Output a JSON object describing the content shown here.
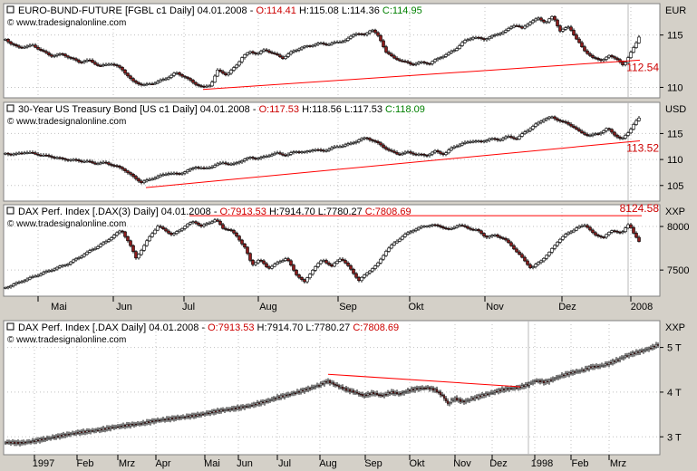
{
  "chart_data": [
    {
      "type": "candlestick",
      "name": "EURO-BUND-FUTURE [FGBL c1",
      "interval": "Daily]",
      "date": "04.01.2008",
      "open_label": "O:",
      "open": "114.41",
      "high_label": "H:",
      "high": "115.08",
      "low_label": "L:",
      "low": "114.36",
      "close_label": "C:",
      "close": "114.95",
      "source": "www.tradesignalonline.com",
      "unit": "EUR",
      "yticks": [
        115,
        110
      ],
      "ylim": [
        109,
        118
      ],
      "series": [
        [
          0,
          114.6
        ],
        [
          6,
          114.2
        ],
        [
          14,
          113.8
        ],
        [
          22,
          113.9
        ],
        [
          30,
          114.0
        ],
        [
          40,
          113.5
        ],
        [
          50,
          113.0
        ],
        [
          62,
          113.2
        ],
        [
          72,
          112.8
        ],
        [
          82,
          112.4
        ],
        [
          92,
          112.6
        ],
        [
          104,
          112.0
        ],
        [
          116,
          112.3
        ],
        [
          128,
          111.8
        ],
        [
          140,
          110.6
        ],
        [
          152,
          110.2
        ],
        [
          164,
          110.4
        ],
        [
          176,
          110.8
        ],
        [
          188,
          111.4
        ],
        [
          198,
          111.0
        ],
        [
          208,
          110.4
        ],
        [
          218,
          110.0
        ],
        [
          226,
          110.2
        ],
        [
          234,
          111.6
        ],
        [
          244,
          111.2
        ],
        [
          254,
          112.0
        ],
        [
          262,
          113.0
        ],
        [
          270,
          113.4
        ],
        [
          278,
          113.2
        ],
        [
          286,
          113.6
        ],
        [
          296,
          113.2
        ],
        [
          306,
          112.8
        ],
        [
          316,
          113.4
        ],
        [
          326,
          113.8
        ],
        [
          336,
          114.0
        ],
        [
          346,
          114.2
        ],
        [
          356,
          114.1
        ],
        [
          366,
          114.3
        ],
        [
          376,
          114.5
        ],
        [
          386,
          115.2
        ],
        [
          396,
          115.0
        ],
        [
          404,
          115.6
        ],
        [
          412,
          114.8
        ],
        [
          420,
          113.4
        ],
        [
          428,
          112.8
        ],
        [
          438,
          112.5
        ],
        [
          448,
          112.2
        ],
        [
          458,
          112.4
        ],
        [
          468,
          112.3
        ],
        [
          478,
          112.8
        ],
        [
          488,
          113.2
        ],
        [
          496,
          113.6
        ],
        [
          506,
          114.4
        ],
        [
          516,
          114.8
        ],
        [
          528,
          114.6
        ],
        [
          540,
          115.0
        ],
        [
          552,
          115.4
        ],
        [
          562,
          116.0
        ],
        [
          570,
          115.6
        ],
        [
          578,
          116.2
        ],
        [
          588,
          116.6
        ],
        [
          596,
          116.2
        ],
        [
          604,
          116.8
        ],
        [
          612,
          115.4
        ],
        [
          622,
          115.8
        ],
        [
          630,
          114.6
        ],
        [
          638,
          113.6
        ],
        [
          648,
          112.8
        ],
        [
          658,
          112.6
        ],
        [
          666,
          113.0
        ],
        [
          674,
          112.8
        ],
        [
          682,
          112.0
        ],
        [
          690,
          113.4
        ],
        [
          696,
          114.2
        ],
        [
          700,
          114.95
        ]
      ],
      "trendline": {
        "from": [
          218,
          109.8
        ],
        "to": [
          700,
          112.6
        ]
      },
      "trendline_label": "112.54"
    },
    {
      "type": "candlestick",
      "name": "30-Year US Treasury Bond [US c1",
      "interval": "Daily]",
      "date": "04.01.2008",
      "open_label": "O:",
      "open": "117.53",
      "high_label": "H:",
      "high": "118.56",
      "low_label": "L:",
      "low": "117.53",
      "close_label": "C:",
      "close": "118.09",
      "source": "www.tradesignalonline.com",
      "unit": "USD",
      "yticks": [
        115,
        110,
        105
      ],
      "ylim": [
        102,
        121
      ],
      "series": [
        [
          0,
          111.2
        ],
        [
          10,
          111.0
        ],
        [
          20,
          111.4
        ],
        [
          30,
          111.2
        ],
        [
          40,
          110.8
        ],
        [
          50,
          110.6
        ],
        [
          60,
          110.2
        ],
        [
          70,
          110.0
        ],
        [
          80,
          109.8
        ],
        [
          90,
          109.6
        ],
        [
          100,
          109.2
        ],
        [
          110,
          109.4
        ],
        [
          120,
          108.8
        ],
        [
          130,
          108.2
        ],
        [
          140,
          106.8
        ],
        [
          150,
          105.6
        ],
        [
          160,
          106.2
        ],
        [
          170,
          106.8
        ],
        [
          180,
          107.4
        ],
        [
          190,
          107.2
        ],
        [
          200,
          107.8
        ],
        [
          210,
          108.6
        ],
        [
          220,
          108.2
        ],
        [
          230,
          108.8
        ],
        [
          240,
          109.4
        ],
        [
          250,
          109.0
        ],
        [
          260,
          109.8
        ],
        [
          270,
          110.4
        ],
        [
          280,
          110.2
        ],
        [
          290,
          110.8
        ],
        [
          300,
          111.2
        ],
        [
          310,
          110.8
        ],
        [
          320,
          111.6
        ],
        [
          330,
          111.4
        ],
        [
          340,
          112.0
        ],
        [
          350,
          111.6
        ],
        [
          360,
          112.2
        ],
        [
          370,
          112.6
        ],
        [
          380,
          113.0
        ],
        [
          390,
          113.8
        ],
        [
          398,
          114.2
        ],
        [
          406,
          113.6
        ],
        [
          414,
          112.8
        ],
        [
          424,
          111.6
        ],
        [
          434,
          111.0
        ],
        [
          444,
          111.4
        ],
        [
          454,
          111.0
        ],
        [
          464,
          110.8
        ],
        [
          474,
          111.6
        ],
        [
          484,
          111.0
        ],
        [
          494,
          112.4
        ],
        [
          504,
          113.0
        ],
        [
          514,
          113.6
        ],
        [
          524,
          113.4
        ],
        [
          534,
          114.0
        ],
        [
          544,
          113.8
        ],
        [
          554,
          114.4
        ],
        [
          564,
          114.0
        ],
        [
          574,
          115.4
        ],
        [
          584,
          116.6
        ],
        [
          594,
          117.8
        ],
        [
          602,
          118.2
        ],
        [
          610,
          117.6
        ],
        [
          618,
          117.0
        ],
        [
          626,
          116.4
        ],
        [
          634,
          115.2
        ],
        [
          644,
          114.6
        ],
        [
          654,
          115.0
        ],
        [
          664,
          116.0
        ],
        [
          672,
          114.8
        ],
        [
          680,
          113.8
        ],
        [
          688,
          115.4
        ],
        [
          694,
          117.0
        ],
        [
          700,
          118.09
        ]
      ],
      "trendline": {
        "from": [
          155,
          104.6
        ],
        "to": [
          700,
          113.6
        ]
      },
      "trendline_label": "113.52"
    },
    {
      "type": "candlestick",
      "name": "DAX Perf. Index [.DAX(3)",
      "interval": "Daily]",
      "date": "04.01.2008",
      "open_label": "O:",
      "open": "7913.53",
      "high_label": "H:",
      "high": "7914.70",
      "low_label": "L:",
      "low": "7780.27",
      "close_label": "C:",
      "close": "7808.69",
      "source": "www.tradesignalonline.com",
      "unit": "XXP",
      "yticks": [
        8000,
        7500
      ],
      "ylim": [
        7200,
        8250
      ],
      "series": [
        [
          0,
          7300
        ],
        [
          10,
          7340
        ],
        [
          20,
          7380
        ],
        [
          30,
          7420
        ],
        [
          40,
          7460
        ],
        [
          50,
          7500
        ],
        [
          60,
          7540
        ],
        [
          70,
          7580
        ],
        [
          80,
          7640
        ],
        [
          90,
          7700
        ],
        [
          100,
          7760
        ],
        [
          110,
          7820
        ],
        [
          120,
          7900
        ],
        [
          128,
          7960
        ],
        [
          136,
          7820
        ],
        [
          144,
          7640
        ],
        [
          152,
          7760
        ],
        [
          160,
          7900
        ],
        [
          168,
          8000
        ],
        [
          176,
          7960
        ],
        [
          184,
          7900
        ],
        [
          192,
          7960
        ],
        [
          200,
          8020
        ],
        [
          208,
          8060
        ],
        [
          216,
          8000
        ],
        [
          224,
          8040
        ],
        [
          232,
          8080
        ],
        [
          240,
          7980
        ],
        [
          248,
          7960
        ],
        [
          256,
          7880
        ],
        [
          264,
          7760
        ],
        [
          272,
          7560
        ],
        [
          280,
          7620
        ],
        [
          290,
          7520
        ],
        [
          300,
          7580
        ],
        [
          310,
          7640
        ],
        [
          320,
          7460
        ],
        [
          330,
          7360
        ],
        [
          340,
          7520
        ],
        [
          350,
          7620
        ],
        [
          360,
          7540
        ],
        [
          370,
          7640
        ],
        [
          380,
          7520
        ],
        [
          390,
          7380
        ],
        [
          400,
          7480
        ],
        [
          410,
          7560
        ],
        [
          420,
          7720
        ],
        [
          430,
          7820
        ],
        [
          440,
          7900
        ],
        [
          450,
          7960
        ],
        [
          460,
          8000
        ],
        [
          470,
          8020
        ],
        [
          480,
          8000
        ],
        [
          490,
          7960
        ],
        [
          500,
          8020
        ],
        [
          510,
          7980
        ],
        [
          520,
          7960
        ],
        [
          530,
          7880
        ],
        [
          540,
          7900
        ],
        [
          550,
          7860
        ],
        [
          560,
          7760
        ],
        [
          570,
          7640
        ],
        [
          580,
          7520
        ],
        [
          590,
          7600
        ],
        [
          600,
          7700
        ],
        [
          610,
          7840
        ],
        [
          620,
          7920
        ],
        [
          630,
          7980
        ],
        [
          640,
          8020
        ],
        [
          650,
          7900
        ],
        [
          660,
          7880
        ],
        [
          670,
          7960
        ],
        [
          680,
          7920
        ],
        [
          688,
          8040
        ],
        [
          694,
          7900
        ],
        [
          700,
          7808
        ]
      ],
      "trendline": {
        "from": [
          203,
          8124
        ],
        "to": [
          702,
          8124
        ]
      },
      "trendline_label": "8124.58",
      "xticks": [
        "Mai",
        "Jun",
        "Jul",
        "Aug",
        "Sep",
        "Okt",
        "Nov",
        "Dez",
        "2008"
      ]
    },
    {
      "type": "candlestick",
      "name": "DAX Perf. Index [.DAX",
      "interval": "Daily]",
      "date": "04.01.2008",
      "open_label": "O:",
      "open": "7913.53",
      "high_label": "H:",
      "high": "7914.70",
      "low_label": "L:",
      "low": "7780.27",
      "close_label": "C:",
      "close": "7808.69",
      "source": "www.tradesignalonline.com",
      "unit": "XXP",
      "yticks": [
        "5 T",
        "4 T",
        "3 T"
      ],
      "ylim": [
        2600,
        5600
      ],
      "series": [
        [
          0,
          2880
        ],
        [
          15,
          2860
        ],
        [
          30,
          2900
        ],
        [
          45,
          2960
        ],
        [
          60,
          3020
        ],
        [
          75,
          3080
        ],
        [
          90,
          3120
        ],
        [
          105,
          3160
        ],
        [
          120,
          3220
        ],
        [
          135,
          3260
        ],
        [
          150,
          3300
        ],
        [
          165,
          3360
        ],
        [
          180,
          3400
        ],
        [
          195,
          3440
        ],
        [
          210,
          3480
        ],
        [
          225,
          3540
        ],
        [
          240,
          3600
        ],
        [
          255,
          3640
        ],
        [
          270,
          3700
        ],
        [
          285,
          3780
        ],
        [
          300,
          3880
        ],
        [
          315,
          3960
        ],
        [
          330,
          4050
        ],
        [
          345,
          4150
        ],
        [
          355,
          4250
        ],
        [
          365,
          4150
        ],
        [
          375,
          4060
        ],
        [
          385,
          4000
        ],
        [
          395,
          3920
        ],
        [
          405,
          3980
        ],
        [
          415,
          3920
        ],
        [
          425,
          4000
        ],
        [
          435,
          3960
        ],
        [
          445,
          4040
        ],
        [
          455,
          4080
        ],
        [
          465,
          4100
        ],
        [
          475,
          4040
        ],
        [
          483,
          3900
        ],
        [
          488,
          3740
        ],
        [
          495,
          3860
        ],
        [
          505,
          3780
        ],
        [
          515,
          3860
        ],
        [
          525,
          3920
        ],
        [
          535,
          3980
        ],
        [
          545,
          4040
        ],
        [
          555,
          4080
        ],
        [
          565,
          4100
        ],
        [
          575,
          4160
        ],
        [
          585,
          4260
        ],
        [
          595,
          4220
        ],
        [
          605,
          4300
        ],
        [
          615,
          4380
        ],
        [
          625,
          4440
        ],
        [
          635,
          4480
        ],
        [
          645,
          4560
        ],
        [
          655,
          4580
        ],
        [
          665,
          4640
        ],
        [
          675,
          4720
        ],
        [
          685,
          4820
        ],
        [
          695,
          4880
        ],
        [
          705,
          4940
        ],
        [
          715,
          5020
        ],
        [
          722,
          5080
        ],
        [
          728,
          5180
        ],
        [
          732,
          5120
        ]
      ],
      "trendline": {
        "from": [
          356,
          4400
        ],
        "to": [
          568,
          4120
        ]
      },
      "xticks": [
        "1997",
        "Feb",
        "Mrz",
        "Apr",
        "Mai",
        "Jun",
        "Jul",
        "Aug",
        "Sep",
        "Okt",
        "Nov",
        "Dez",
        "1998",
        "Feb",
        "Mrz"
      ]
    }
  ],
  "colors": {
    "frame": "#d4d0c8",
    "plot_bg": "#ffffff",
    "up": "#ffffff",
    "down": "#8b1c1c",
    "wick": "#000000",
    "trend": "#ff0000",
    "green": "#008000",
    "red": "#cc0000"
  }
}
